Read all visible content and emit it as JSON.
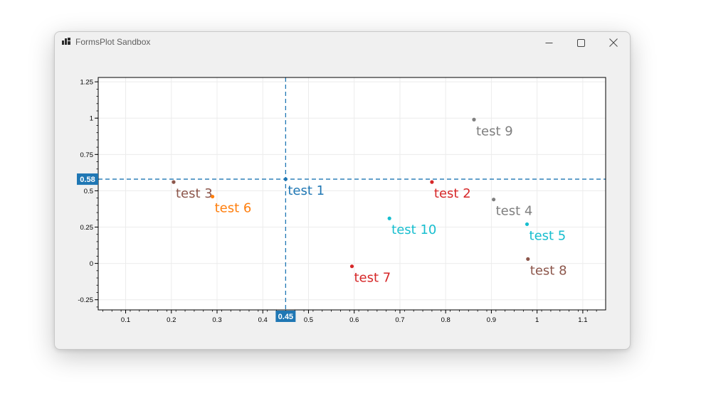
{
  "window": {
    "title": "FormsPlot Sandbox",
    "icon": "app-icon",
    "controls": [
      "minimize-icon",
      "maximize-icon",
      "close-icon"
    ]
  },
  "chart_data": {
    "type": "scatter",
    "title": "",
    "xlabel": "",
    "ylabel": "",
    "xlim": [
      0.04,
      1.15
    ],
    "ylim": [
      -0.32,
      1.28
    ],
    "grid": true,
    "x_ticks": [
      "0.1",
      "0.2",
      "0.3",
      "0.4",
      "0.5",
      "0.6",
      "0.7",
      "0.8",
      "0.9",
      "1",
      "1.1"
    ],
    "y_ticks": [
      "-0.25",
      "0",
      "0.25",
      "0.5",
      "0.75",
      "1",
      "1.25"
    ],
    "points": [
      {
        "label": "test 1",
        "x": 0.45,
        "y": 0.58,
        "color": "#1f77b4"
      },
      {
        "label": "test 2",
        "x": 0.77,
        "y": 0.56,
        "color": "#d62728"
      },
      {
        "label": "test 3",
        "x": 0.205,
        "y": 0.56,
        "color": "#8c564b"
      },
      {
        "label": "test 4",
        "x": 0.905,
        "y": 0.44,
        "color": "#7f7f7f"
      },
      {
        "label": "test 5",
        "x": 0.978,
        "y": 0.27,
        "color": "#17becf"
      },
      {
        "label": "test 6",
        "x": 0.29,
        "y": 0.46,
        "color": "#ff7f0e"
      },
      {
        "label": "test 7",
        "x": 0.595,
        "y": -0.02,
        "color": "#d62728"
      },
      {
        "label": "test 8",
        "x": 0.98,
        "y": 0.03,
        "color": "#8c564b"
      },
      {
        "label": "test 9",
        "x": 0.862,
        "y": 0.99,
        "color": "#7f7f7f"
      },
      {
        "label": "test 10",
        "x": 0.677,
        "y": 0.31,
        "color": "#17becf"
      }
    ],
    "crosshair": {
      "x_label": "0.45",
      "y_label": "0.58",
      "x": 0.45,
      "y": 0.58,
      "color": "#1f77b4"
    }
  }
}
